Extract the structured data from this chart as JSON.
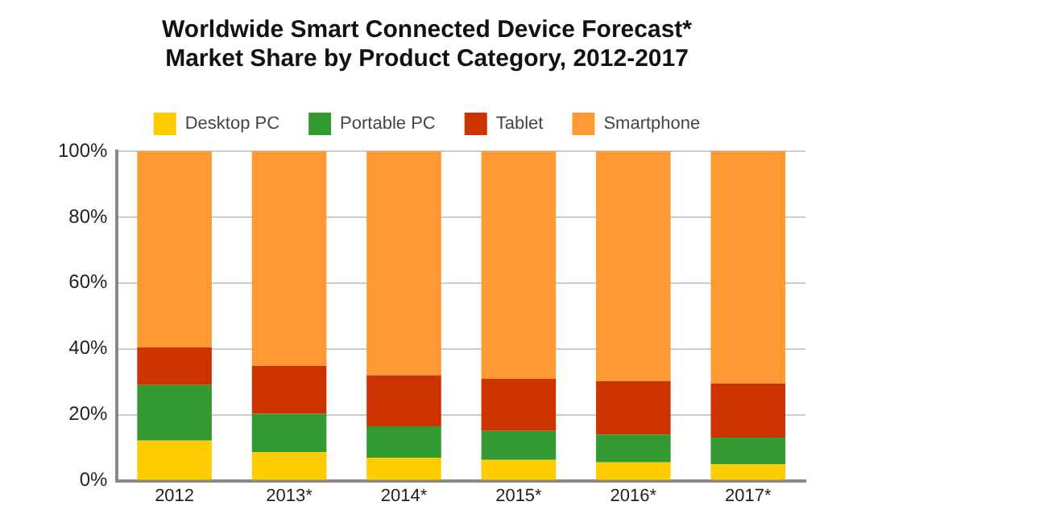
{
  "chart_data": {
    "type": "bar",
    "stacked": true,
    "title": [
      "Worldwide Smart Connected Device Forecast*",
      "Market Share by Product Category, 2012-2017"
    ],
    "categories": [
      "2012",
      "2013*",
      "2014*",
      "2015*",
      "2016*",
      "2017*"
    ],
    "series": [
      {
        "name": "Desktop PC",
        "color": "#ffcc00",
        "values": [
          12.2,
          8.6,
          7.0,
          6.3,
          5.6,
          5.0
        ]
      },
      {
        "name": "Portable PC",
        "color": "#339933",
        "values": [
          16.8,
          11.7,
          9.5,
          8.8,
          8.4,
          8.1
        ]
      },
      {
        "name": "Tablet",
        "color": "#cc3300",
        "values": [
          11.5,
          14.6,
          15.5,
          15.8,
          16.2,
          16.4
        ]
      },
      {
        "name": "Smartphone",
        "color": "#ff9933",
        "values": [
          59.5,
          65.1,
          68.0,
          69.1,
          69.8,
          70.5
        ]
      }
    ],
    "ylim": [
      0,
      100
    ],
    "yticks": [
      {
        "value": 0,
        "label": "0%"
      },
      {
        "value": 20,
        "label": "20%"
      },
      {
        "value": 40,
        "label": "40%"
      },
      {
        "value": 60,
        "label": "60%"
      },
      {
        "value": 80,
        "label": "80%"
      },
      {
        "value": 100,
        "label": "100%"
      }
    ],
    "grid": "y",
    "legend": "top"
  }
}
